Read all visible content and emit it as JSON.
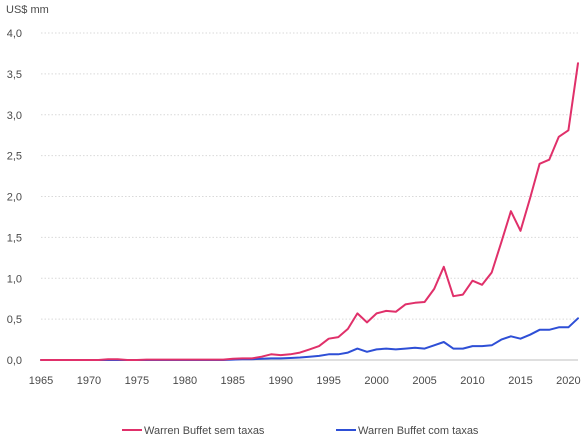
{
  "chart_data": {
    "type": "line",
    "title": "",
    "ylabel": "US$ mm",
    "xlabel": "",
    "xlim": [
      1965,
      2021
    ],
    "ylim": [
      0,
      4.0
    ],
    "x_ticks": [
      1965,
      1970,
      1975,
      1980,
      1985,
      1990,
      1995,
      2000,
      2005,
      2010,
      2015,
      2020
    ],
    "x_tick_labels": [
      "1965",
      "1970",
      "1975",
      "1980",
      "1985",
      "1990",
      "1995",
      "2000",
      "2005",
      "2010",
      "2015",
      "2020"
    ],
    "y_ticks": [
      0,
      0.5,
      1.0,
      1.5,
      2.0,
      2.5,
      3.0,
      3.5,
      4.0
    ],
    "y_tick_labels": [
      "0,0",
      "0,5",
      "1,0",
      "1,5",
      "2,0",
      "2,5",
      "3,0",
      "3,5",
      "4,0"
    ],
    "grid": true,
    "legend_position": "bottom",
    "x": [
      1965,
      1966,
      1967,
      1968,
      1969,
      1970,
      1971,
      1972,
      1973,
      1974,
      1975,
      1976,
      1977,
      1978,
      1979,
      1980,
      1981,
      1982,
      1983,
      1984,
      1985,
      1986,
      1987,
      1988,
      1989,
      1990,
      1991,
      1992,
      1993,
      1994,
      1995,
      1996,
      1997,
      1998,
      1999,
      2000,
      2001,
      2002,
      2003,
      2004,
      2005,
      2006,
      2007,
      2008,
      2009,
      2010,
      2011,
      2012,
      2013,
      2014,
      2015,
      2016,
      2017,
      2018,
      2019,
      2020,
      2021
    ],
    "series": [
      {
        "name": "Warren Buffet sem taxas",
        "color": "#e0306a",
        "values": [
          0.0,
          0.0,
          0.0,
          0.0,
          0.0,
          0.0,
          0.0,
          0.01,
          0.01,
          0.0,
          0.0,
          0.005,
          0.005,
          0.005,
          0.005,
          0.005,
          0.005,
          0.005,
          0.005,
          0.005,
          0.015,
          0.02,
          0.02,
          0.04,
          0.07,
          0.06,
          0.07,
          0.09,
          0.13,
          0.17,
          0.26,
          0.28,
          0.38,
          0.57,
          0.46,
          0.57,
          0.6,
          0.59,
          0.68,
          0.7,
          0.71,
          0.87,
          1.14,
          0.78,
          0.8,
          0.97,
          0.92,
          1.07,
          1.44,
          1.82,
          1.58,
          1.98,
          2.4,
          2.45,
          2.73,
          2.81,
          3.63
        ]
      },
      {
        "name": "Warren Buffet com taxas",
        "color": "#2e4fd6",
        "values": [
          0.0,
          0.0,
          0.0,
          0.0,
          0.0,
          0.0,
          0.0,
          0.0,
          0.0,
          0.0,
          0.0,
          0.0,
          0.0,
          0.0,
          0.0,
          0.0,
          0.0,
          0.0,
          0.0,
          0.0,
          0.005,
          0.01,
          0.01,
          0.015,
          0.02,
          0.02,
          0.025,
          0.03,
          0.04,
          0.05,
          0.07,
          0.07,
          0.09,
          0.14,
          0.1,
          0.13,
          0.14,
          0.13,
          0.14,
          0.15,
          0.14,
          0.18,
          0.22,
          0.14,
          0.14,
          0.17,
          0.17,
          0.18,
          0.25,
          0.29,
          0.26,
          0.31,
          0.37,
          0.37,
          0.4,
          0.4,
          0.51
        ]
      }
    ]
  }
}
